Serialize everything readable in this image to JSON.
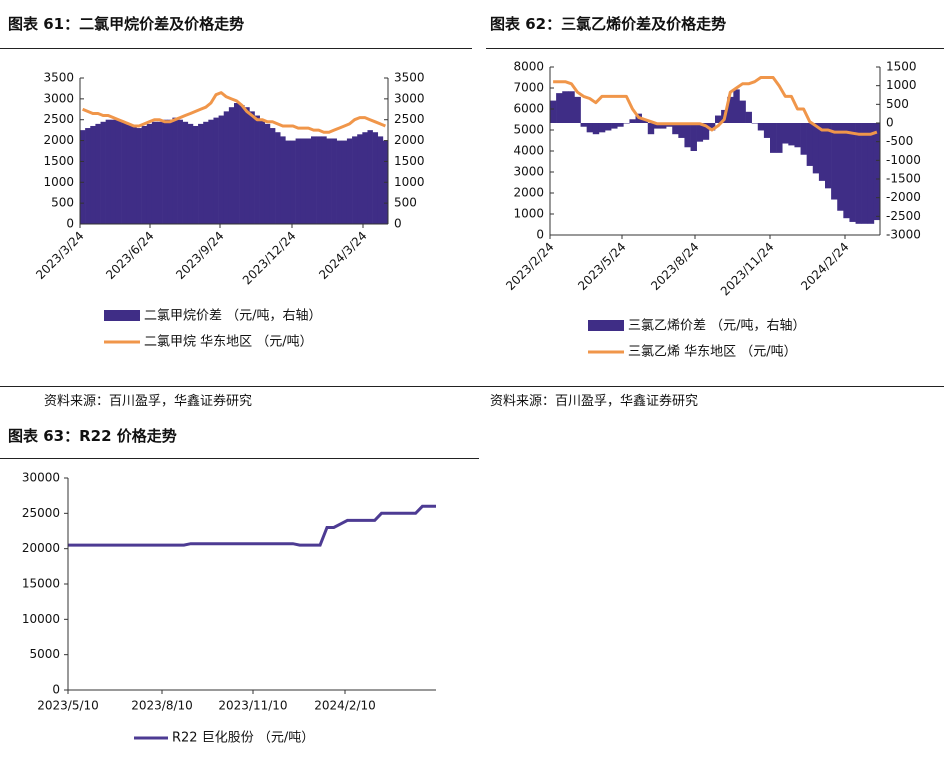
{
  "charts": {
    "c61": {
      "title": "图表 61：二氯甲烷价差及价格走势",
      "source": "资料来源：百川盈孚，华鑫证券研究"
    },
    "c62": {
      "title": "图表 62：三氯乙烯价差及价格走势",
      "source": "资料来源：百川盈孚，华鑫证券研究"
    },
    "c63": {
      "title": "图表 63：R22 价格走势"
    }
  },
  "colors": {
    "bar": "#3f2d86",
    "line": "#f0964a",
    "line63": "#4d3b93",
    "axis": "#333333"
  },
  "chart_data": [
    {
      "id": "c61",
      "type": "bar",
      "title": "图表 61：二氯甲烷价差及价格走势",
      "x_ticks": [
        "2023/3/24",
        "2023/6/24",
        "2023/9/24",
        "2023/12/24",
        "2024/3/24"
      ],
      "y_left": {
        "range": [
          0,
          3500
        ],
        "ticks": [
          "0",
          "500",
          "1000",
          "1500",
          "2000",
          "2500",
          "3000",
          "3500"
        ]
      },
      "y_right": {
        "range": [
          0,
          3500
        ],
        "ticks": [
          "0",
          "500",
          "1000",
          "1500",
          "2000",
          "2500",
          "3000",
          "3500"
        ]
      },
      "series": [
        {
          "name": "二氯甲烷价差 （元/吨，右轴）",
          "kind": "bar",
          "axis": "right",
          "values": [
            2250,
            2300,
            2350,
            2400,
            2450,
            2500,
            2500,
            2500,
            2450,
            2400,
            2350,
            2300,
            2350,
            2400,
            2450,
            2450,
            2500,
            2500,
            2550,
            2500,
            2450,
            2400,
            2350,
            2400,
            2450,
            2500,
            2550,
            2600,
            2700,
            2800,
            2900,
            2850,
            2800,
            2700,
            2600,
            2500,
            2400,
            2300,
            2200,
            2100,
            2000,
            2000,
            2050,
            2050,
            2050,
            2100,
            2100,
            2100,
            2050,
            2050,
            2000,
            2000,
            2050,
            2100,
            2150,
            2200,
            2250,
            2200,
            2100,
            2000
          ]
        },
        {
          "name": "二氯甲烷 华东地区 （元/吨）",
          "kind": "line",
          "axis": "left",
          "values": [
            2750,
            2700,
            2650,
            2650,
            2600,
            2600,
            2550,
            2500,
            2450,
            2400,
            2350,
            2350,
            2400,
            2450,
            2500,
            2500,
            2450,
            2450,
            2500,
            2550,
            2600,
            2650,
            2700,
            2750,
            2800,
            2900,
            3100,
            3150,
            3050,
            3000,
            2950,
            2850,
            2700,
            2600,
            2500,
            2500,
            2450,
            2450,
            2400,
            2350,
            2350,
            2350,
            2300,
            2300,
            2300,
            2250,
            2250,
            2200,
            2200,
            2250,
            2300,
            2350,
            2400,
            2500,
            2550,
            2550,
            2500,
            2450,
            2400,
            2350
          ]
        }
      ]
    },
    {
      "id": "c62",
      "type": "bar",
      "title": "图表 62：三氯乙烯价差及价格走势",
      "x_ticks": [
        "2023/2/24",
        "2023/5/24",
        "2023/8/24",
        "2023/11/24",
        "2024/2/24"
      ],
      "y_left": {
        "range": [
          0,
          8000
        ],
        "ticks": [
          "0",
          "1000",
          "2000",
          "3000",
          "4000",
          "5000",
          "6000",
          "7000",
          "8000"
        ]
      },
      "y_right": {
        "range": [
          -3000,
          1500
        ],
        "ticks": [
          "-3000",
          "-2500",
          "-2000",
          "-1500",
          "-1000",
          "-500",
          "0",
          "500",
          "1000",
          "1500"
        ]
      },
      "series": [
        {
          "name": "三氯乙烯价差 （元/吨，右轴）",
          "kind": "bar",
          "axis": "right",
          "values": [
            600,
            800,
            850,
            850,
            700,
            -100,
            -250,
            -300,
            -250,
            -200,
            -150,
            -100,
            0,
            100,
            250,
            100,
            -300,
            -150,
            -150,
            -100,
            -300,
            -400,
            -650,
            -750,
            -500,
            -450,
            -200,
            200,
            350,
            700,
            900,
            600,
            300,
            0,
            -200,
            -400,
            -800,
            -800,
            -550,
            -600,
            -650,
            -850,
            -1150,
            -1350,
            -1550,
            -1750,
            -2050,
            -2350,
            -2550,
            -2650,
            -2700,
            -2700,
            -2700,
            -2600
          ]
        },
        {
          "name": "三氯乙烯 华东地区 （元/吨）",
          "kind": "line",
          "axis": "left",
          "values": [
            7300,
            7300,
            7300,
            7200,
            6800,
            6600,
            6500,
            6300,
            6600,
            6600,
            6600,
            6600,
            6600,
            6000,
            5600,
            5500,
            5400,
            5300,
            5300,
            5300,
            5300,
            5300,
            5300,
            5300,
            5300,
            5200,
            5000,
            5200,
            5500,
            6800,
            7000,
            7200,
            7200,
            7300,
            7500,
            7500,
            7500,
            7100,
            6600,
            6600,
            6000,
            6000,
            5400,
            5200,
            5000,
            5000,
            4900,
            4900,
            4900,
            4850,
            4800,
            4800,
            4800,
            4900
          ]
        }
      ]
    },
    {
      "id": "c63",
      "type": "line",
      "title": "图表 63：R22 价格走势",
      "x_ticks": [
        "2023/5/10",
        "2023/8/10",
        "2023/11/10",
        "2024/2/10"
      ],
      "y": {
        "range": [
          0,
          30000
        ],
        "ticks": [
          "0",
          "5000",
          "10000",
          "15000",
          "20000",
          "25000",
          "30000"
        ]
      },
      "series": [
        {
          "name": "R22  巨化股份 （元/吨）",
          "kind": "line",
          "values": [
            20500,
            20500,
            20500,
            20500,
            20500,
            20500,
            20500,
            20500,
            20500,
            20500,
            20500,
            20500,
            20500,
            20500,
            20500,
            20500,
            20500,
            20500,
            20700,
            20700,
            20700,
            20700,
            20700,
            20700,
            20700,
            20700,
            20700,
            20700,
            20700,
            20700,
            20700,
            20700,
            20700,
            20700,
            20500,
            20500,
            20500,
            20500,
            23000,
            23000,
            23500,
            24000,
            24000,
            24000,
            24000,
            24000,
            25000,
            25000,
            25000,
            25000,
            25000,
            25000,
            26000,
            26000,
            26000
          ]
        }
      ]
    }
  ]
}
